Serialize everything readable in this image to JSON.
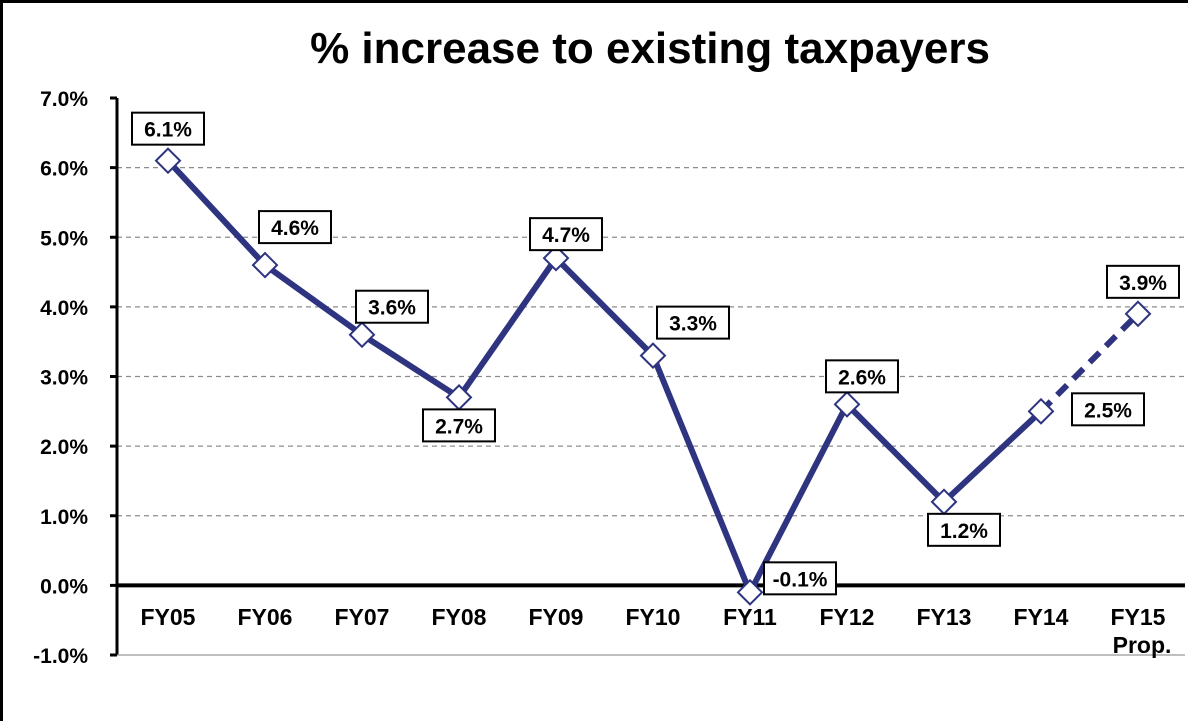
{
  "chart_data": {
    "type": "line",
    "title": "% increase to existing taxpayers",
    "xlabel": "",
    "ylabel": "",
    "categories": [
      "FY05",
      "FY06",
      "FY07",
      "FY08",
      "FY09",
      "FY10",
      "FY11",
      "FY12",
      "FY13",
      "FY14",
      "FY15 Prop."
    ],
    "category_lines": [
      [
        "FY05"
      ],
      [
        "FY06"
      ],
      [
        "FY07"
      ],
      [
        "FY08"
      ],
      [
        "FY09"
      ],
      [
        "FY10"
      ],
      [
        "FY11"
      ],
      [
        "FY12"
      ],
      [
        "FY13"
      ],
      [
        "FY14"
      ],
      [
        "FY15",
        "Prop."
      ]
    ],
    "series": [
      {
        "values": [
          6.1,
          4.6,
          3.6,
          2.7,
          4.7,
          3.3,
          -0.1,
          2.6,
          1.2,
          2.5,
          3.9
        ],
        "labels": [
          "6.1%",
          "4.6%",
          "3.6%",
          "2.7%",
          "4.7%",
          "3.3%",
          "-0.1%",
          "2.6%",
          "1.2%",
          "2.5%",
          "3.9%"
        ],
        "dashed_last_segment": true
      }
    ],
    "ylim": [
      -1.0,
      7.0
    ],
    "yticks": [
      -1.0,
      0.0,
      1.0,
      2.0,
      3.0,
      4.0,
      5.0,
      6.0,
      7.0
    ],
    "ytick_labels": [
      "-1.0%",
      "0.0%",
      "1.0%",
      "2.0%",
      "3.0%",
      "4.0%",
      "5.0%",
      "6.0%",
      "7.0%"
    ],
    "grid": "horizontal dashed",
    "legend": "none",
    "colors": {
      "line": "#2E3480",
      "marker_fill": "#FFFFFF",
      "grid": "#8C8C8C",
      "axis": "#000000"
    }
  }
}
